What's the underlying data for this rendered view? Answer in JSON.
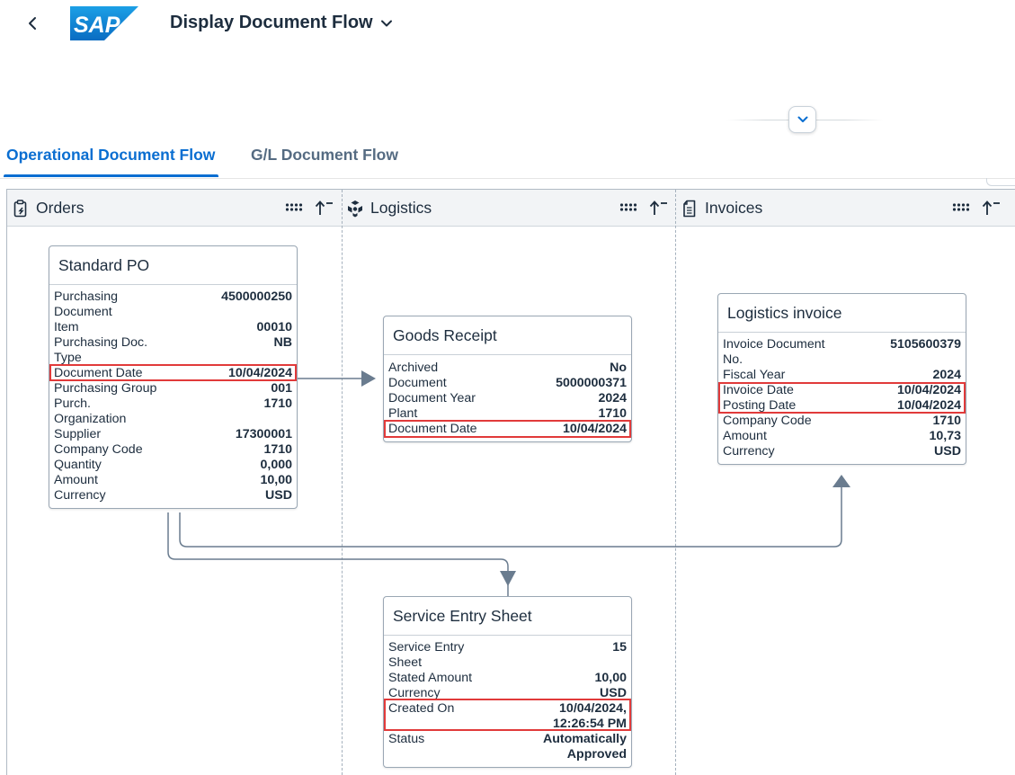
{
  "header": {
    "back_icon": "chevron-left-icon",
    "logo": "SAP",
    "title": "Display Document Flow",
    "title_menu_icon": "chevron-down-icon",
    "collapse_icon": "chevron-down-icon"
  },
  "tabs": [
    {
      "label": "Operational Document Flow",
      "selected": true
    },
    {
      "label": "G/L Document Flow",
      "selected": false
    }
  ],
  "lanes": [
    {
      "title": "Orders",
      "icon": "clipboard-icon",
      "actions": [
        "drag-handle-icon",
        "sort-icon"
      ]
    },
    {
      "title": "Logistics",
      "icon": "cube-icon",
      "actions": [
        "drag-handle-icon",
        "sort-icon"
      ]
    },
    {
      "title": "Invoices",
      "icon": "document-icon",
      "actions": [
        "drag-handle-icon",
        "sort-icon"
      ]
    }
  ],
  "cards": {
    "standard_po": {
      "title": "Standard PO",
      "rows": [
        {
          "k": "Purchasing Document",
          "v": "4500000250"
        },
        {
          "k": "Item",
          "v": "00010"
        },
        {
          "k": "Purchasing Doc. Type",
          "v": "NB"
        },
        {
          "k": "Document Date",
          "v": "10/04/2024"
        },
        {
          "k": "Purchasing Group",
          "v": "001"
        },
        {
          "k": "Purch. Organization",
          "v": "1710"
        },
        {
          "k": "Supplier",
          "v": "17300001"
        },
        {
          "k": "Company Code",
          "v": "1710"
        },
        {
          "k": "Quantity",
          "v": "0,000"
        },
        {
          "k": "Amount",
          "v": "10,00"
        },
        {
          "k": "Currency",
          "v": "USD"
        }
      ]
    },
    "goods_receipt": {
      "title": "Goods Receipt",
      "rows": [
        {
          "k": "Archived",
          "v": "No"
        },
        {
          "k": "Document",
          "v": "5000000371"
        },
        {
          "k": "Document Year",
          "v": "2024"
        },
        {
          "k": "Plant",
          "v": "1710"
        },
        {
          "k": "Document Date",
          "v": "10/04/2024"
        }
      ]
    },
    "logistics_invoice": {
      "title": "Logistics invoice",
      "rows": [
        {
          "k": "Invoice Document No.",
          "v": "5105600379"
        },
        {
          "k": "Fiscal Year",
          "v": "2024"
        },
        {
          "k": "Invoice Date",
          "v": "10/04/2024"
        },
        {
          "k": "Posting Date",
          "v": "10/04/2024"
        },
        {
          "k": "Company Code",
          "v": "1710"
        },
        {
          "k": "Amount",
          "v": "10,73"
        },
        {
          "k": "Currency",
          "v": "USD"
        }
      ]
    },
    "service_entry_sheet": {
      "title": "Service Entry Sheet",
      "rows": [
        {
          "k": "Service Entry Sheet",
          "v": "15"
        },
        {
          "k": "Stated Amount",
          "v": "10,00"
        },
        {
          "k": "Currency",
          "v": "USD"
        },
        {
          "k": "Created On",
          "v": "10/04/2024, 12:26:54 PM"
        },
        {
          "k": "Status",
          "v": "Automatically Approved"
        }
      ]
    }
  },
  "colors": {
    "accent": "#0a6ed1",
    "highlight": "#e13a3a",
    "connector": "#6a7c8f"
  }
}
